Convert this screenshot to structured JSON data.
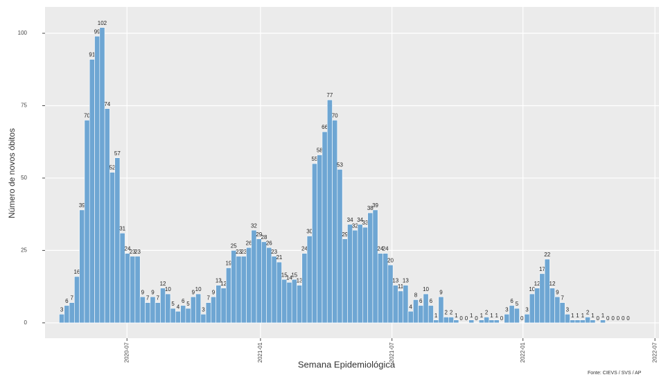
{
  "chart_data": {
    "type": "bar",
    "y_label": "Número de novos óbitos",
    "x_label": "Semana Epidemiológica",
    "source": "Fonte: CIEVS / SVS / AP",
    "color": "#6ea6d3",
    "grid": true,
    "categories": [
      null,
      null,
      null,
      null,
      null,
      null,
      null,
      null,
      null,
      null,
      null,
      null,
      null,
      null,
      null,
      null,
      null,
      null,
      null,
      null,
      null,
      null,
      null,
      null,
      null,
      null,
      null,
      null,
      null,
      null,
      null,
      null,
      null,
      null,
      null,
      null,
      null,
      null,
      null,
      null,
      null,
      null,
      null,
      null,
      null,
      null,
      null,
      null,
      null,
      null,
      null,
      null,
      null,
      null,
      null,
      null,
      null,
      null,
      null,
      null,
      null,
      null,
      null,
      null,
      null,
      null,
      null,
      null,
      null,
      null,
      null,
      null,
      null,
      null,
      null,
      null,
      null,
      null,
      null,
      null,
      null,
      null,
      null,
      null,
      null,
      null,
      null,
      null,
      null,
      null,
      null,
      null,
      null,
      null,
      null,
      null,
      null,
      null,
      null,
      null,
      null,
      null,
      null,
      null,
      null,
      null,
      null,
      null,
      null,
      null,
      null,
      null,
      null
    ],
    "values": [
      3,
      6,
      7,
      16,
      39,
      70,
      91,
      99,
      102,
      74,
      52,
      57,
      31,
      24,
      23,
      23,
      9,
      7,
      9,
      7,
      12,
      10,
      5,
      4,
      6,
      5,
      9,
      10,
      3,
      7,
      9,
      13,
      12,
      19,
      25,
      23,
      23,
      26,
      32,
      29,
      28,
      26,
      23,
      21,
      15,
      14,
      15,
      13,
      24,
      30,
      55,
      58,
      66,
      77,
      70,
      53,
      29,
      34,
      32,
      34,
      33,
      38,
      39,
      24,
      24,
      20,
      13,
      11,
      13,
      4,
      8,
      6,
      10,
      6,
      1,
      9,
      2,
      2,
      1,
      0,
      0,
      1,
      0,
      1,
      2,
      1,
      1,
      0,
      3,
      6,
      5,
      0,
      3,
      10,
      12,
      17,
      22,
      12,
      9,
      7,
      3,
      1,
      1,
      1,
      2,
      1,
      0,
      1,
      0,
      0,
      0,
      0,
      0
    ],
    "xlim": [
      -3.3,
      118.1
    ],
    "xticks": [
      {
        "value": 12.9,
        "label": "2020-07"
      },
      {
        "value": 39.3,
        "label": "2021-01"
      },
      {
        "value": 65.3,
        "label": "2021-07"
      },
      {
        "value": 91.2,
        "label": "2022-01"
      },
      {
        "value": 117.3,
        "label": "2022-07"
      }
    ],
    "ylim": [
      -5.3,
      109.1
    ],
    "yticks": [
      0,
      25,
      50,
      75,
      100
    ]
  }
}
